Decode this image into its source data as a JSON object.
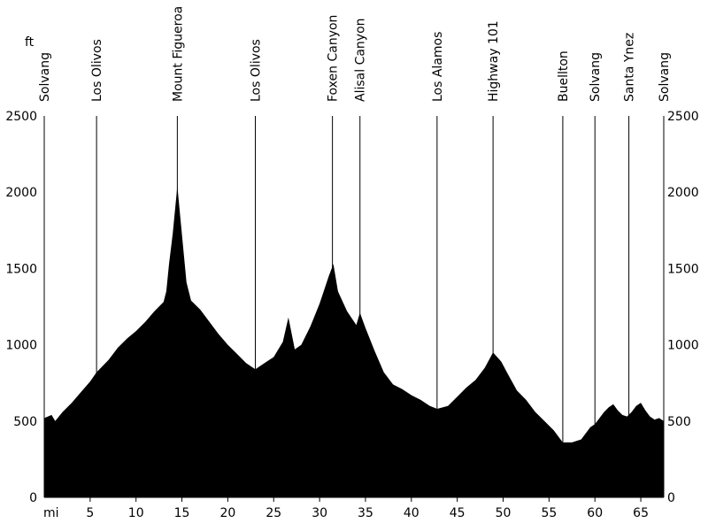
{
  "chart_data": {
    "type": "area",
    "title": "",
    "x_unit": "mi",
    "y_unit": "ft",
    "xlim": [
      0,
      67.5
    ],
    "ylim": [
      0,
      2500
    ],
    "x_ticks": [
      5,
      10,
      15,
      20,
      25,
      30,
      35,
      40,
      45,
      50,
      55,
      60,
      65
    ],
    "y_ticks": [
      0,
      500,
      1000,
      1500,
      2000,
      2500
    ],
    "grid": false,
    "colors": {
      "fill": "#000000",
      "background": "#ffffff"
    },
    "waypoints": [
      {
        "mile": 0,
        "label": "Solvang"
      },
      {
        "mile": 5.7,
        "label": "Los Olivos"
      },
      {
        "mile": 14.5,
        "label": "Mount Figueroa"
      },
      {
        "mile": 23,
        "label": "Los Olivos"
      },
      {
        "mile": 31.4,
        "label": "Foxen Canyon"
      },
      {
        "mile": 34.4,
        "label": "Alisal Canyon"
      },
      {
        "mile": 42.8,
        "label": "Los Alamos"
      },
      {
        "mile": 48.9,
        "label": "Highway 101"
      },
      {
        "mile": 56.5,
        "label": "Buellton"
      },
      {
        "mile": 60,
        "label": "Solvang"
      },
      {
        "mile": 63.7,
        "label": "Santa Ynez"
      },
      {
        "mile": 67.5,
        "label": "Solvang"
      }
    ],
    "x": [
      0,
      0.8,
      1.2,
      2,
      3,
      4,
      5,
      5.7,
      7,
      8,
      9,
      10,
      11,
      12,
      13,
      13.3,
      13.6,
      14,
      14.5,
      14.8,
      15.5,
      16,
      17,
      18,
      19,
      20,
      21,
      22,
      23,
      24,
      25,
      26,
      26.6,
      27.3,
      28,
      29,
      30,
      31,
      31.5,
      32,
      33,
      34,
      34.4,
      35,
      36,
      37,
      38,
      39,
      40,
      41,
      42,
      42.8,
      44,
      45,
      46,
      47,
      48,
      48.9,
      49.8,
      50.5,
      51.5,
      52.5,
      53.5,
      54.5,
      55.5,
      56.5,
      57.5,
      58.5,
      59.5,
      60,
      60.5,
      61,
      61.5,
      62,
      62.5,
      63,
      63.5,
      64,
      64.5,
      65,
      65.5,
      66,
      66.5,
      67,
      67.5
    ],
    "y": [
      520,
      540,
      500,
      560,
      620,
      690,
      760,
      820,
      900,
      980,
      1040,
      1090,
      1150,
      1220,
      1280,
      1350,
      1530,
      1730,
      2040,
      1850,
      1410,
      1290,
      1230,
      1150,
      1070,
      1000,
      940,
      880,
      840,
      880,
      920,
      1020,
      1180,
      970,
      1000,
      1120,
      1270,
      1450,
      1530,
      1350,
      1220,
      1130,
      1210,
      1110,
      960,
      820,
      740,
      710,
      670,
      640,
      600,
      580,
      600,
      660,
      720,
      770,
      850,
      950,
      890,
      810,
      700,
      640,
      560,
      500,
      440,
      360,
      360,
      380,
      460,
      480,
      520,
      560,
      590,
      610,
      570,
      540,
      530,
      560,
      600,
      620,
      570,
      530,
      510,
      520,
      500
    ]
  }
}
